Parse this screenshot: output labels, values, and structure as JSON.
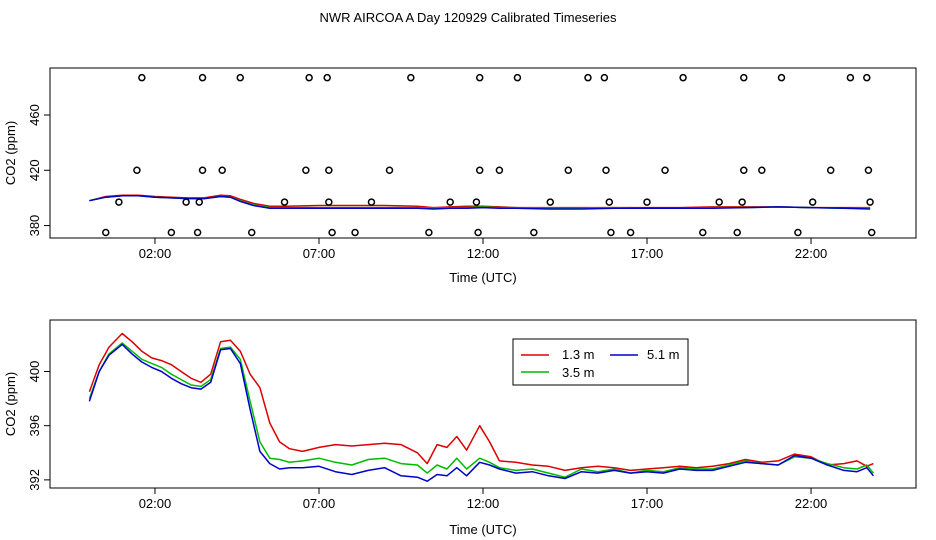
{
  "title": "NWR AIRCOA A  Day 120929  Calibrated Timeseries",
  "chart_data": [
    {
      "type": "scatter+line",
      "xlabel": "Time (UTC)",
      "ylabel": "CO2 (ppm)",
      "xlim": [
        -1.2,
        25.2
      ],
      "ylim": [
        371,
        494
      ],
      "xticks": [
        2,
        7,
        12,
        17,
        22
      ],
      "xtick_labels": [
        "02:00",
        "07:00",
        "12:00",
        "17:00",
        "22:00"
      ],
      "yticks": [
        380,
        420,
        460
      ],
      "ytick_labels": [
        "380",
        "420",
        "460"
      ],
      "points": [
        {
          "x": 0.5,
          "y": 375
        },
        {
          "x": 0.9,
          "y": 397
        },
        {
          "x": 1.45,
          "y": 420
        },
        {
          "x": 1.6,
          "y": 487
        },
        {
          "x": 2.5,
          "y": 375
        },
        {
          "x": 2.95,
          "y": 397
        },
        {
          "x": 3.3,
          "y": 375
        },
        {
          "x": 3.35,
          "y": 397
        },
        {
          "x": 3.45,
          "y": 420
        },
        {
          "x": 3.45,
          "y": 487
        },
        {
          "x": 4.05,
          "y": 420
        },
        {
          "x": 4.6,
          "y": 487
        },
        {
          "x": 4.95,
          "y": 375
        },
        {
          "x": 5.95,
          "y": 397
        },
        {
          "x": 6.6,
          "y": 420
        },
        {
          "x": 6.7,
          "y": 487
        },
        {
          "x": 7.25,
          "y": 487
        },
        {
          "x": 7.3,
          "y": 420
        },
        {
          "x": 7.3,
          "y": 397
        },
        {
          "x": 7.4,
          "y": 375
        },
        {
          "x": 8.1,
          "y": 375
        },
        {
          "x": 8.6,
          "y": 397
        },
        {
          "x": 9.15,
          "y": 420
        },
        {
          "x": 9.8,
          "y": 487
        },
        {
          "x": 10.35,
          "y": 375
        },
        {
          "x": 11.0,
          "y": 397
        },
        {
          "x": 11.8,
          "y": 397
        },
        {
          "x": 11.9,
          "y": 420
        },
        {
          "x": 11.9,
          "y": 487
        },
        {
          "x": 11.85,
          "y": 375
        },
        {
          "x": 12.5,
          "y": 420
        },
        {
          "x": 13.05,
          "y": 487
        },
        {
          "x": 13.55,
          "y": 375
        },
        {
          "x": 14.05,
          "y": 397
        },
        {
          "x": 14.6,
          "y": 420
        },
        {
          "x": 15.2,
          "y": 487
        },
        {
          "x": 15.7,
          "y": 487
        },
        {
          "x": 15.75,
          "y": 420
        },
        {
          "x": 15.85,
          "y": 397
        },
        {
          "x": 15.9,
          "y": 375
        },
        {
          "x": 16.5,
          "y": 375
        },
        {
          "x": 17.0,
          "y": 397
        },
        {
          "x": 17.55,
          "y": 420
        },
        {
          "x": 18.1,
          "y": 487
        },
        {
          "x": 18.7,
          "y": 375
        },
        {
          "x": 19.2,
          "y": 397
        },
        {
          "x": 19.75,
          "y": 375
        },
        {
          "x": 19.9,
          "y": 397
        },
        {
          "x": 19.95,
          "y": 420
        },
        {
          "x": 19.95,
          "y": 487
        },
        {
          "x": 20.5,
          "y": 420
        },
        {
          "x": 21.1,
          "y": 487
        },
        {
          "x": 21.6,
          "y": 375
        },
        {
          "x": 22.05,
          "y": 397
        },
        {
          "x": 22.6,
          "y": 420
        },
        {
          "x": 23.2,
          "y": 487
        },
        {
          "x": 23.7,
          "y": 487
        },
        {
          "x": 23.75,
          "y": 420
        },
        {
          "x": 23.8,
          "y": 397
        },
        {
          "x": 23.85,
          "y": 375
        }
      ],
      "series": [
        {
          "name": "1.3 m",
          "color": "#dd0000",
          "x": [
            0,
            0.5,
            1,
            1.5,
            2,
            2.5,
            3,
            3.5,
            4,
            4.3,
            4.6,
            5,
            5.5,
            6,
            7,
            8,
            9,
            10,
            10.5,
            11,
            11.5,
            12,
            12.5,
            13,
            14,
            15,
            16,
            17,
            18,
            19,
            20,
            21,
            22,
            23,
            23.8
          ],
          "y": [
            398,
            401,
            402,
            402,
            401,
            400.5,
            400,
            400,
            402,
            401.5,
            399,
            396,
            394,
            394,
            394.5,
            394.5,
            394.5,
            394,
            393,
            393.5,
            394,
            394,
            393.5,
            393,
            393,
            393,
            393,
            393,
            393,
            393.5,
            393.5,
            393.5,
            393,
            393,
            393
          ]
        },
        {
          "name": "3.5 m",
          "color": "#00bb00",
          "x": [
            0,
            0.5,
            1,
            1.5,
            2,
            2.5,
            3,
            3.5,
            4,
            4.3,
            4.6,
            5,
            5.5,
            6,
            7,
            8,
            9,
            10,
            10.5,
            11,
            11.5,
            12,
            12.5,
            13,
            14,
            15,
            16,
            17,
            18,
            19,
            20,
            21,
            22,
            23,
            23.8
          ],
          "y": [
            398,
            400.5,
            401.5,
            401.5,
            400.5,
            400,
            399.5,
            399.5,
            401,
            400.5,
            398,
            395,
            393,
            393,
            393,
            393,
            393,
            393,
            392.5,
            393,
            393,
            393.5,
            393,
            393,
            392.5,
            392.5,
            393,
            392.5,
            392.5,
            393,
            393,
            393.5,
            393,
            392.5,
            392.5
          ]
        },
        {
          "name": "5.1 m",
          "color": "#0000cc",
          "x": [
            0,
            0.5,
            1,
            1.5,
            2,
            2.5,
            3,
            3.5,
            4,
            4.3,
            4.6,
            5,
            5.5,
            6,
            7,
            8,
            9,
            10,
            10.5,
            11,
            11.5,
            12,
            12.5,
            13,
            14,
            15,
            16,
            17,
            18,
            19,
            20,
            21,
            22,
            23,
            23.8
          ],
          "y": [
            398,
            400.5,
            401.5,
            401.5,
            400.5,
            400,
            399.5,
            399.5,
            401,
            400.5,
            397.5,
            394.5,
            392.5,
            392.5,
            392.5,
            392.5,
            392.5,
            392.5,
            392,
            392.5,
            392.5,
            393,
            392.5,
            392.5,
            392,
            392,
            392.5,
            392.5,
            392.5,
            392.5,
            393,
            393.5,
            393,
            392.5,
            392
          ]
        }
      ]
    },
    {
      "type": "line",
      "xlabel": "Time (UTC)",
      "ylabel": "CO2 (ppm)",
      "xlim": [
        -1.2,
        25.2
      ],
      "ylim": [
        391.4,
        403.8
      ],
      "xticks": [
        2,
        7,
        12,
        17,
        22
      ],
      "xtick_labels": [
        "02:00",
        "07:00",
        "12:00",
        "17:00",
        "22:00"
      ],
      "yticks": [
        392,
        396,
        400
      ],
      "ytick_labels": [
        "392",
        "396",
        "400"
      ],
      "legend": {
        "position": "top-right",
        "entries": [
          "1.3 m",
          "3.5 m",
          "5.1 m"
        ]
      },
      "series": [
        {
          "name": "1.3 m",
          "color": "#dd0000",
          "x": [
            0,
            0.3,
            0.6,
            1,
            1.3,
            1.6,
            1.9,
            2.2,
            2.5,
            2.8,
            3.1,
            3.4,
            3.7,
            4,
            4.3,
            4.6,
            4.9,
            5.2,
            5.5,
            5.8,
            6.1,
            6.5,
            7,
            7.5,
            8,
            8.5,
            9,
            9.5,
            10,
            10.3,
            10.6,
            10.9,
            11.2,
            11.5,
            11.9,
            12.2,
            12.5,
            13,
            13.5,
            14,
            14.5,
            15,
            15.5,
            16,
            16.5,
            17,
            17.5,
            18,
            18.5,
            19,
            19.5,
            20,
            20.5,
            21,
            21.5,
            22,
            22.5,
            23,
            23.4,
            23.7,
            23.9
          ],
          "y": [
            398.5,
            400.5,
            401.8,
            402.8,
            402.2,
            401.5,
            401,
            400.8,
            400.5,
            400,
            399.5,
            399.2,
            399.8,
            402.2,
            402.3,
            401.5,
            399.8,
            398.8,
            396.2,
            394.8,
            394.3,
            394.1,
            394.4,
            394.6,
            394.5,
            394.6,
            394.7,
            394.6,
            394,
            393.2,
            394.6,
            394.4,
            395.2,
            394.2,
            396,
            394.8,
            393.4,
            393.3,
            393.1,
            393,
            392.7,
            392.9,
            393,
            392.9,
            392.7,
            392.8,
            392.9,
            393,
            392.9,
            393,
            393.2,
            393.5,
            393.3,
            393.4,
            393.9,
            393.7,
            393.1,
            393.2,
            393.4,
            393,
            393.2
          ]
        },
        {
          "name": "3.5 m",
          "color": "#00bb00",
          "x": [
            0,
            0.3,
            0.6,
            1,
            1.3,
            1.6,
            1.9,
            2.2,
            2.5,
            2.8,
            3.1,
            3.4,
            3.7,
            4,
            4.3,
            4.6,
            4.9,
            5.2,
            5.5,
            5.8,
            6.1,
            6.5,
            7,
            7.5,
            8,
            8.5,
            9,
            9.5,
            10,
            10.3,
            10.6,
            10.9,
            11.2,
            11.5,
            11.9,
            12.2,
            12.5,
            13,
            13.5,
            14,
            14.5,
            15,
            15.5,
            16,
            16.5,
            17,
            17.5,
            18,
            18.5,
            19,
            19.5,
            20,
            20.5,
            21,
            21.5,
            22,
            22.5,
            23,
            23.4,
            23.7,
            23.9
          ],
          "y": [
            398,
            400,
            401.3,
            402.1,
            401.5,
            400.9,
            400.6,
            400.3,
            399.8,
            399.4,
            399,
            398.9,
            399.4,
            401.7,
            401.8,
            400.9,
            397.8,
            394.8,
            393.6,
            393.5,
            393.3,
            393.4,
            393.6,
            393.3,
            393.1,
            393.5,
            393.6,
            393.2,
            393.1,
            392.5,
            393.1,
            392.8,
            393.6,
            392.8,
            393.6,
            393.3,
            392.9,
            392.7,
            392.8,
            392.5,
            392.2,
            392.8,
            392.6,
            392.8,
            392.5,
            392.7,
            392.6,
            392.9,
            392.8,
            392.8,
            393.1,
            393.4,
            393.2,
            393.1,
            393.7,
            393.6,
            393.2,
            392.9,
            392.8,
            393.1,
            392.5
          ]
        },
        {
          "name": "5.1 m",
          "color": "#0000cc",
          "x": [
            0,
            0.3,
            0.6,
            1,
            1.3,
            1.6,
            1.9,
            2.2,
            2.5,
            2.8,
            3.1,
            3.4,
            3.7,
            4,
            4.3,
            4.6,
            4.9,
            5.2,
            5.5,
            5.8,
            6.1,
            6.5,
            7,
            7.5,
            8,
            8.5,
            9,
            9.5,
            10,
            10.3,
            10.6,
            10.9,
            11.2,
            11.5,
            11.9,
            12.2,
            12.5,
            13,
            13.5,
            14,
            14.5,
            15,
            15.5,
            16,
            16.5,
            17,
            17.5,
            18,
            18.5,
            19,
            19.5,
            20,
            20.5,
            21,
            21.5,
            22,
            22.5,
            23,
            23.4,
            23.7,
            23.9
          ],
          "y": [
            397.8,
            400,
            401.2,
            402,
            401.3,
            400.7,
            400.3,
            400,
            399.5,
            399.1,
            398.8,
            398.7,
            399.2,
            401.6,
            401.7,
            400.6,
            397.2,
            394.1,
            393.2,
            392.8,
            392.9,
            392.9,
            393,
            392.6,
            392.4,
            392.7,
            392.9,
            392.3,
            392.2,
            391.9,
            392.4,
            392.3,
            392.9,
            392.3,
            393.3,
            393.1,
            392.8,
            392.5,
            392.6,
            392.3,
            392.1,
            392.6,
            392.5,
            392.7,
            392.5,
            392.6,
            392.5,
            392.8,
            392.7,
            392.7,
            393,
            393.3,
            393.2,
            393.1,
            393.8,
            393.6,
            393.1,
            392.7,
            392.6,
            392.9,
            392.3
          ]
        }
      ]
    }
  ]
}
